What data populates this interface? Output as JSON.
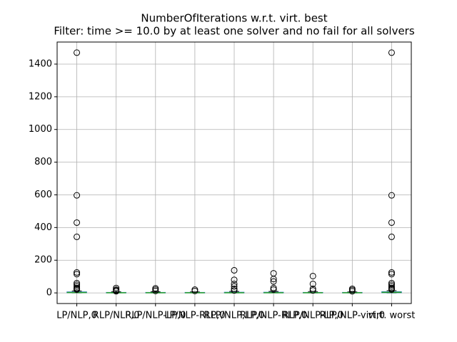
{
  "chart_data": {
    "type": "box",
    "title": "NumberOfIterations w.r.t. virt. best",
    "subtitle": "Filter: time >= 10.0 by at least one solver and no fail for all solvers",
    "categories": [
      "LP/NLP,0",
      "RLP/NLP,0",
      "RLP/NLP-LP,0",
      "LP/NLP-RLP,0",
      "RLP/NLP,LP,0",
      "RLP/NLP-RLP,0",
      "RLP/NLP-LP,0",
      "RLP/NLP-virt,0",
      "virt. worst"
    ],
    "boxes": [
      {
        "whislo": 0,
        "q1": 1,
        "med": 2,
        "q3": 6,
        "whishi": 12,
        "fliers": [
          1470,
          597,
          430,
          343,
          125,
          115,
          60,
          50,
          40,
          30,
          25,
          20
        ]
      },
      {
        "whislo": 0,
        "q1": 0,
        "med": 1,
        "q3": 3,
        "whishi": 7,
        "fliers": [
          30,
          20,
          15,
          10
        ]
      },
      {
        "whislo": 0,
        "q1": 0,
        "med": 1,
        "q3": 3,
        "whishi": 7,
        "fliers": [
          28,
          20,
          12
        ]
      },
      {
        "whislo": 0,
        "q1": 0,
        "med": 1,
        "q3": 3,
        "whishi": 6,
        "fliers": [
          20,
          12
        ]
      },
      {
        "whislo": 0,
        "q1": 0,
        "med": 1,
        "q3": 4,
        "whishi": 9,
        "fliers": [
          138,
          80,
          55,
          40,
          25,
          15
        ]
      },
      {
        "whislo": 0,
        "q1": 0,
        "med": 1,
        "q3": 4,
        "whishi": 9,
        "fliers": [
          120,
          85,
          70,
          30,
          20
        ]
      },
      {
        "whislo": 0,
        "q1": 0,
        "med": 1,
        "q3": 3,
        "whishi": 8,
        "fliers": [
          103,
          55,
          25,
          15
        ]
      },
      {
        "whislo": 0,
        "q1": 0,
        "med": 1,
        "q3": 3,
        "whishi": 6,
        "fliers": [
          25,
          18,
          10
        ]
      },
      {
        "whislo": 0,
        "q1": 1,
        "med": 3,
        "q3": 7,
        "whishi": 14,
        "fliers": [
          1470,
          597,
          430,
          343,
          125,
          115,
          60,
          50,
          40,
          30,
          25,
          20
        ]
      }
    ],
    "box_color": "#1f77b4",
    "median_color": "#2ca02c",
    "ylim": [
      -65,
      1535
    ],
    "yticks": [
      0,
      200,
      400,
      600,
      800,
      1000,
      1200,
      1400
    ],
    "grid": true
  }
}
